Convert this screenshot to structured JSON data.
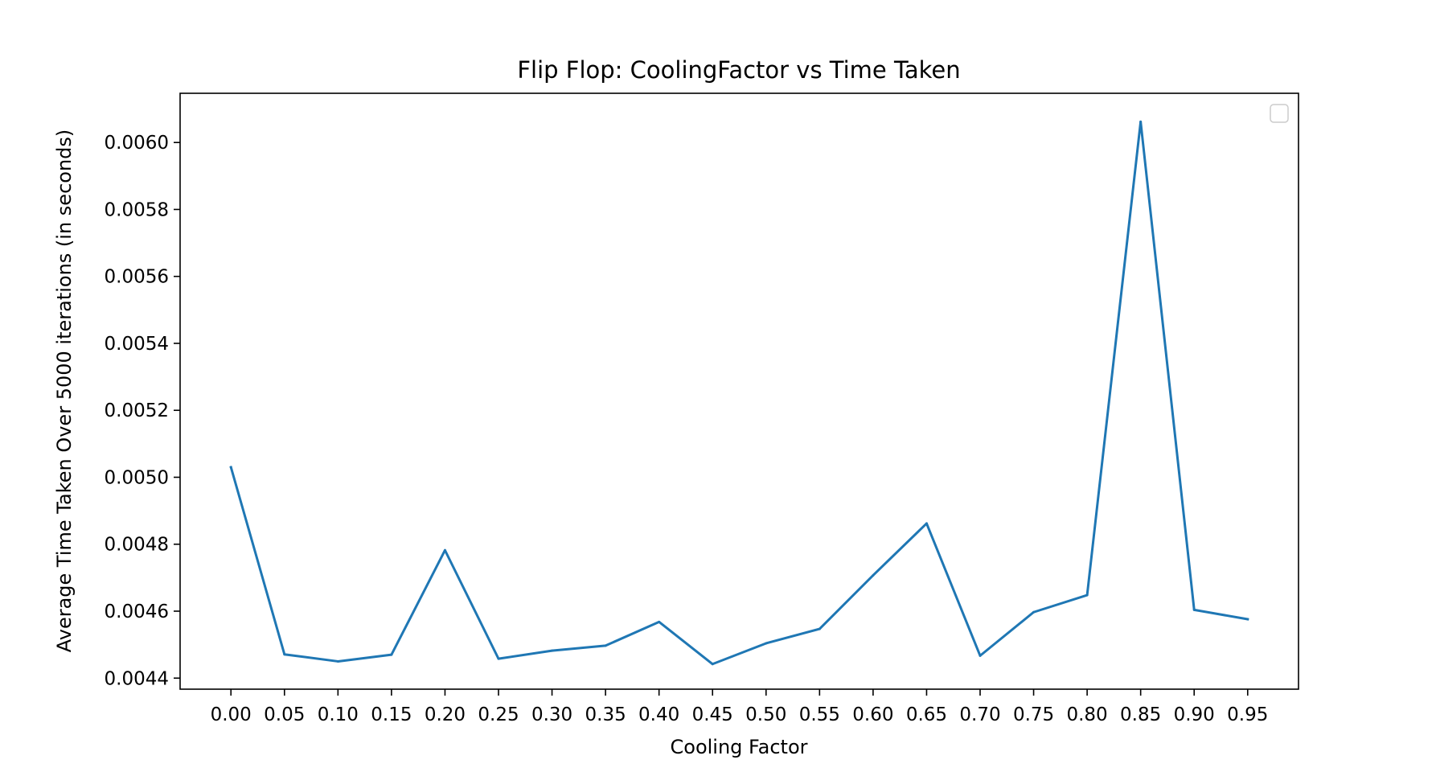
{
  "chart_data": {
    "type": "line",
    "title": "Flip Flop: CoolingFactor vs Time Taken",
    "xlabel": "Cooling Factor",
    "ylabel": "Average Time Taken Over 5000 iterations (in seconds)",
    "x": [
      0.0,
      0.05,
      0.1,
      0.15,
      0.2,
      0.25,
      0.3,
      0.35,
      0.4,
      0.45,
      0.5,
      0.55,
      0.6,
      0.65,
      0.7,
      0.75,
      0.8,
      0.85,
      0.9,
      0.95
    ],
    "x_tick_labels": [
      "0.00",
      "0.05",
      "0.10",
      "0.15",
      "0.20",
      "0.25",
      "0.30",
      "0.35",
      "0.40",
      "0.45",
      "0.50",
      "0.55",
      "0.60",
      "0.65",
      "0.70",
      "0.75",
      "0.80",
      "0.85",
      "0.90",
      "0.95"
    ],
    "xlim": [
      -0.0475,
      0.9975
    ],
    "y_ticks": [
      0.0044,
      0.0046,
      0.0048,
      0.005,
      0.0052,
      0.0054,
      0.0056,
      0.0058,
      0.006
    ],
    "y_tick_labels": [
      "0.0044",
      "0.0046",
      "0.0048",
      "0.0050",
      "0.0052",
      "0.0054",
      "0.0056",
      "0.0058",
      "0.0060"
    ],
    "ylim": [
      0.004367,
      0.006147
    ],
    "series": [
      {
        "color": "#1f77b4",
        "values": [
          0.00503,
          0.004471,
          0.00445,
          0.00447,
          0.004782,
          0.004458,
          0.004482,
          0.004497,
          0.004568,
          0.004442,
          0.004504,
          0.004547,
          0.004707,
          0.004862,
          0.004467,
          0.004597,
          0.004648,
          0.006062,
          0.004604,
          0.004576
        ]
      }
    ],
    "legend": {
      "placement": "top-right",
      "entries": []
    },
    "grid": false
  }
}
